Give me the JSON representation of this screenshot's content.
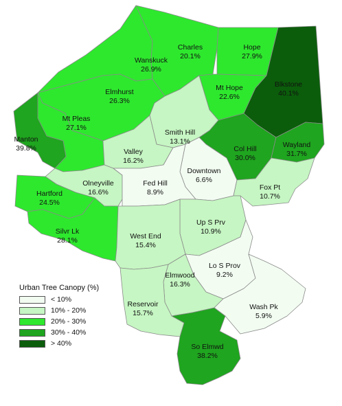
{
  "colors": {
    "class_lt10": "#f2fcf1",
    "class_10_20": "#c6f6c3",
    "class_20_30": "#2ee82e",
    "class_30_40": "#1fa51f",
    "class_gt40": "#0b5d0b",
    "boundary": "#8a8a8a"
  },
  "legend": {
    "title": "Urban Tree Canopy (%)",
    "items": [
      {
        "label": "< 10%",
        "class": "class_lt10"
      },
      {
        "label": "10% - 20%",
        "class": "class_10_20"
      },
      {
        "label": "20% - 30%",
        "class": "class_20_30"
      },
      {
        "label": "30% - 40%",
        "class": "class_30_40"
      },
      {
        "label": "> 40%",
        "class": "class_gt40"
      }
    ]
  },
  "neighborhoods": [
    {
      "key": "charles",
      "name": "Charles",
      "value": "20.1%",
      "class": "class_20_30"
    },
    {
      "key": "hope",
      "name": "Hope",
      "value": "27.9%",
      "class": "class_20_30"
    },
    {
      "key": "wanskuck",
      "name": "Wanskuck",
      "value": "26.9%",
      "class": "class_20_30"
    },
    {
      "key": "blkstone",
      "name": "Blkstone",
      "value": "40.1%",
      "class": "class_gt40"
    },
    {
      "key": "mthope",
      "name": "Mt Hope",
      "value": "22.6%",
      "class": "class_20_30"
    },
    {
      "key": "elmhurst",
      "name": "Elmhurst",
      "value": "26.3%",
      "class": "class_20_30"
    },
    {
      "key": "mtpleas",
      "name": "Mt Pleas",
      "value": "27.1%",
      "class": "class_20_30"
    },
    {
      "key": "smithhill",
      "name": "Smith Hill",
      "value": "13.1%",
      "class": "class_10_20"
    },
    {
      "key": "manton",
      "name": "Manton",
      "value": "39.8%",
      "class": "class_30_40"
    },
    {
      "key": "colhill",
      "name": "Col Hill",
      "value": "30.0%",
      "class": "class_30_40"
    },
    {
      "key": "wayland",
      "name": "Wayland",
      "value": "31.7%",
      "class": "class_30_40"
    },
    {
      "key": "valley",
      "name": "Valley",
      "value": "16.2%",
      "class": "class_10_20"
    },
    {
      "key": "downtown",
      "name": "Downtown",
      "value": "6.6%",
      "class": "class_lt10"
    },
    {
      "key": "olneyville",
      "name": "Olneyville",
      "value": "16.6%",
      "class": "class_10_20"
    },
    {
      "key": "fedhill",
      "name": "Fed Hill",
      "value": "8.9%",
      "class": "class_lt10"
    },
    {
      "key": "foxpt",
      "name": "Fox Pt",
      "value": "10.7%",
      "class": "class_10_20"
    },
    {
      "key": "hartford",
      "name": "Hartford",
      "value": "24.5%",
      "class": "class_20_30"
    },
    {
      "key": "upsprv",
      "name": "Up S Prv",
      "value": "10.9%",
      "class": "class_10_20"
    },
    {
      "key": "westend",
      "name": "West End",
      "value": "15.4%",
      "class": "class_10_20"
    },
    {
      "key": "silvrlk",
      "name": "Silvr Lk",
      "value": "28.1%",
      "class": "class_20_30"
    },
    {
      "key": "losprov",
      "name": "Lo S Prov",
      "value": "9.2%",
      "class": "class_lt10"
    },
    {
      "key": "elmwood",
      "name": "Elmwood",
      "value": "16.3%",
      "class": "class_10_20"
    },
    {
      "key": "reservoir",
      "name": "Reservoir",
      "value": "15.7%",
      "class": "class_10_20"
    },
    {
      "key": "washpk",
      "name": "Wash Pk",
      "value": "5.9%",
      "class": "class_lt10"
    },
    {
      "key": "soelmwd",
      "name": "So Elmwd",
      "value": "38.2%",
      "class": "class_30_40"
    }
  ]
}
